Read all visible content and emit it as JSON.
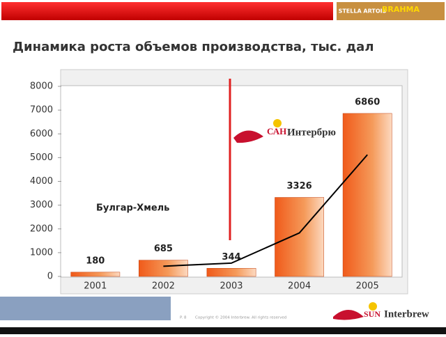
{
  "header": {
    "brands": [
      "STELLA ARTOIS",
      "BRAHMA"
    ]
  },
  "chart_data": {
    "type": "bar",
    "title": "Динамика роста объемов производства, тыс. дал",
    "categories": [
      "2001",
      "2002",
      "2003",
      "2004",
      "2005"
    ],
    "series": [
      {
        "type": "bar",
        "color": "#f07a2a",
        "values": [
          180,
          685,
          344,
          3326,
          6860
        ]
      },
      {
        "type": "line",
        "color": "#000000",
        "values": [
          null,
          430,
          560,
          1830,
          5120
        ]
      }
    ],
    "ylim": [
      0,
      8000
    ],
    "yticks": [
      0,
      1000,
      2000,
      3000,
      4000,
      5000,
      6000,
      7000,
      8000
    ],
    "annotations": [
      "Булгар-Хмель"
    ]
  },
  "logos": {
    "san": "САН",
    "interbrew_ru": "Интербрю",
    "sun": "SUN",
    "interbrew": "Interbrew"
  },
  "footer": {
    "page": "P. 8",
    "copyright": "Copyright © 2004 Interbrew.  All rights reserved"
  }
}
